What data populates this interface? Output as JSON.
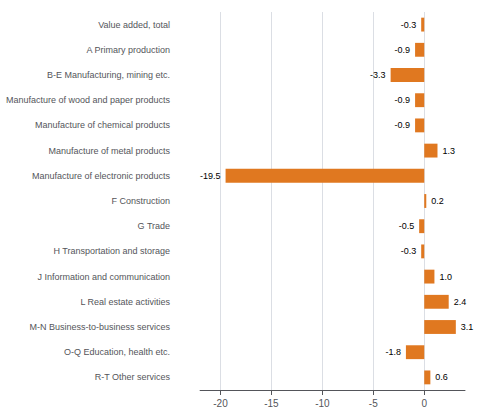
{
  "chart_data": {
    "type": "bar",
    "orientation": "horizontal",
    "categories": [
      "Value added, total",
      "A Primary production",
      "B-E Manufacturing, mining etc.",
      "Manufacture of wood and paper products",
      "Manufacture of chemical products",
      "Manufacture of metal products",
      "Manufacture of electronic products",
      "F Construction",
      "G Trade",
      "H Transportation and storage",
      "J Information and communication",
      "L Real estate activities",
      "M-N Business-to-business services",
      "O-Q Education, health etc.",
      "R-T Other services"
    ],
    "values": [
      -0.3,
      -0.9,
      -3.3,
      -0.9,
      -0.9,
      1.3,
      -19.5,
      0.2,
      -0.5,
      -0.3,
      1.0,
      2.4,
      3.1,
      -1.8,
      0.6
    ],
    "value_labels": [
      "-0.3",
      "-0.9",
      "-3.3",
      "-0.9",
      "-0.9",
      "1.3",
      "-19.5",
      "0.2",
      "-0.5",
      "-0.3",
      "1.0",
      "2.4",
      "3.1",
      "-1.8",
      "0.6"
    ],
    "data_labels": true,
    "color": "#E07820",
    "xlim": [
      -22,
      4
    ],
    "xticks": [
      -20,
      -15,
      -10,
      -5,
      0
    ],
    "grid": true
  }
}
